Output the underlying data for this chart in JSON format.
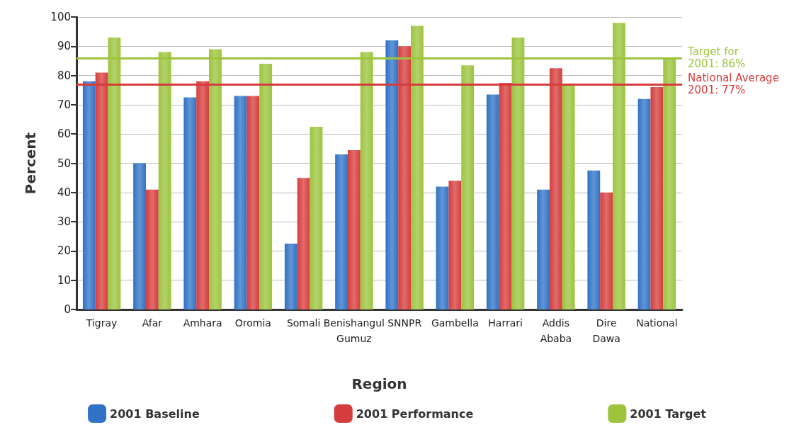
{
  "chart_data": {
    "type": "bar",
    "xlabel": "Region",
    "ylabel": "Percent",
    "categories": [
      "Tigray",
      "Afar",
      "Amhara",
      "Oromia",
      "Somali",
      "Benishangul Gumuz",
      "SNNPR",
      "Gambella",
      "Harrari",
      "Addis Ababa",
      "Dire Dawa",
      "National"
    ],
    "series": [
      {
        "name": "2001 Baseline",
        "color": "#2f72c6",
        "values": [
          78,
          50,
          72.5,
          73,
          22.5,
          53,
          92,
          42,
          73.5,
          41,
          47.5,
          72
        ]
      },
      {
        "name": "2001 Performance",
        "color": "#d63c3c",
        "values": [
          81,
          41,
          78,
          73,
          45,
          54.5,
          90,
          44,
          77.5,
          82.5,
          40,
          76
        ]
      },
      {
        "name": "2001 Target",
        "color": "#9cc43c",
        "values": [
          93,
          88,
          89,
          84,
          62.5,
          88,
          97,
          83.5,
          93,
          76.5,
          98,
          85.5
        ]
      }
    ],
    "ylim": [
      0,
      100
    ],
    "yticks": [
      0,
      10,
      20,
      30,
      40,
      50,
      60,
      70,
      80,
      90,
      100
    ],
    "grid": "y",
    "legend": "bottom",
    "ref_lines": [
      {
        "axis": "y",
        "value": 86,
        "label": "Target for\n2001: 86%",
        "color": "#9cc43c"
      },
      {
        "axis": "y",
        "value": 77,
        "label": "National Average\n2001: 77%",
        "color": "#d63c3c"
      }
    ]
  }
}
